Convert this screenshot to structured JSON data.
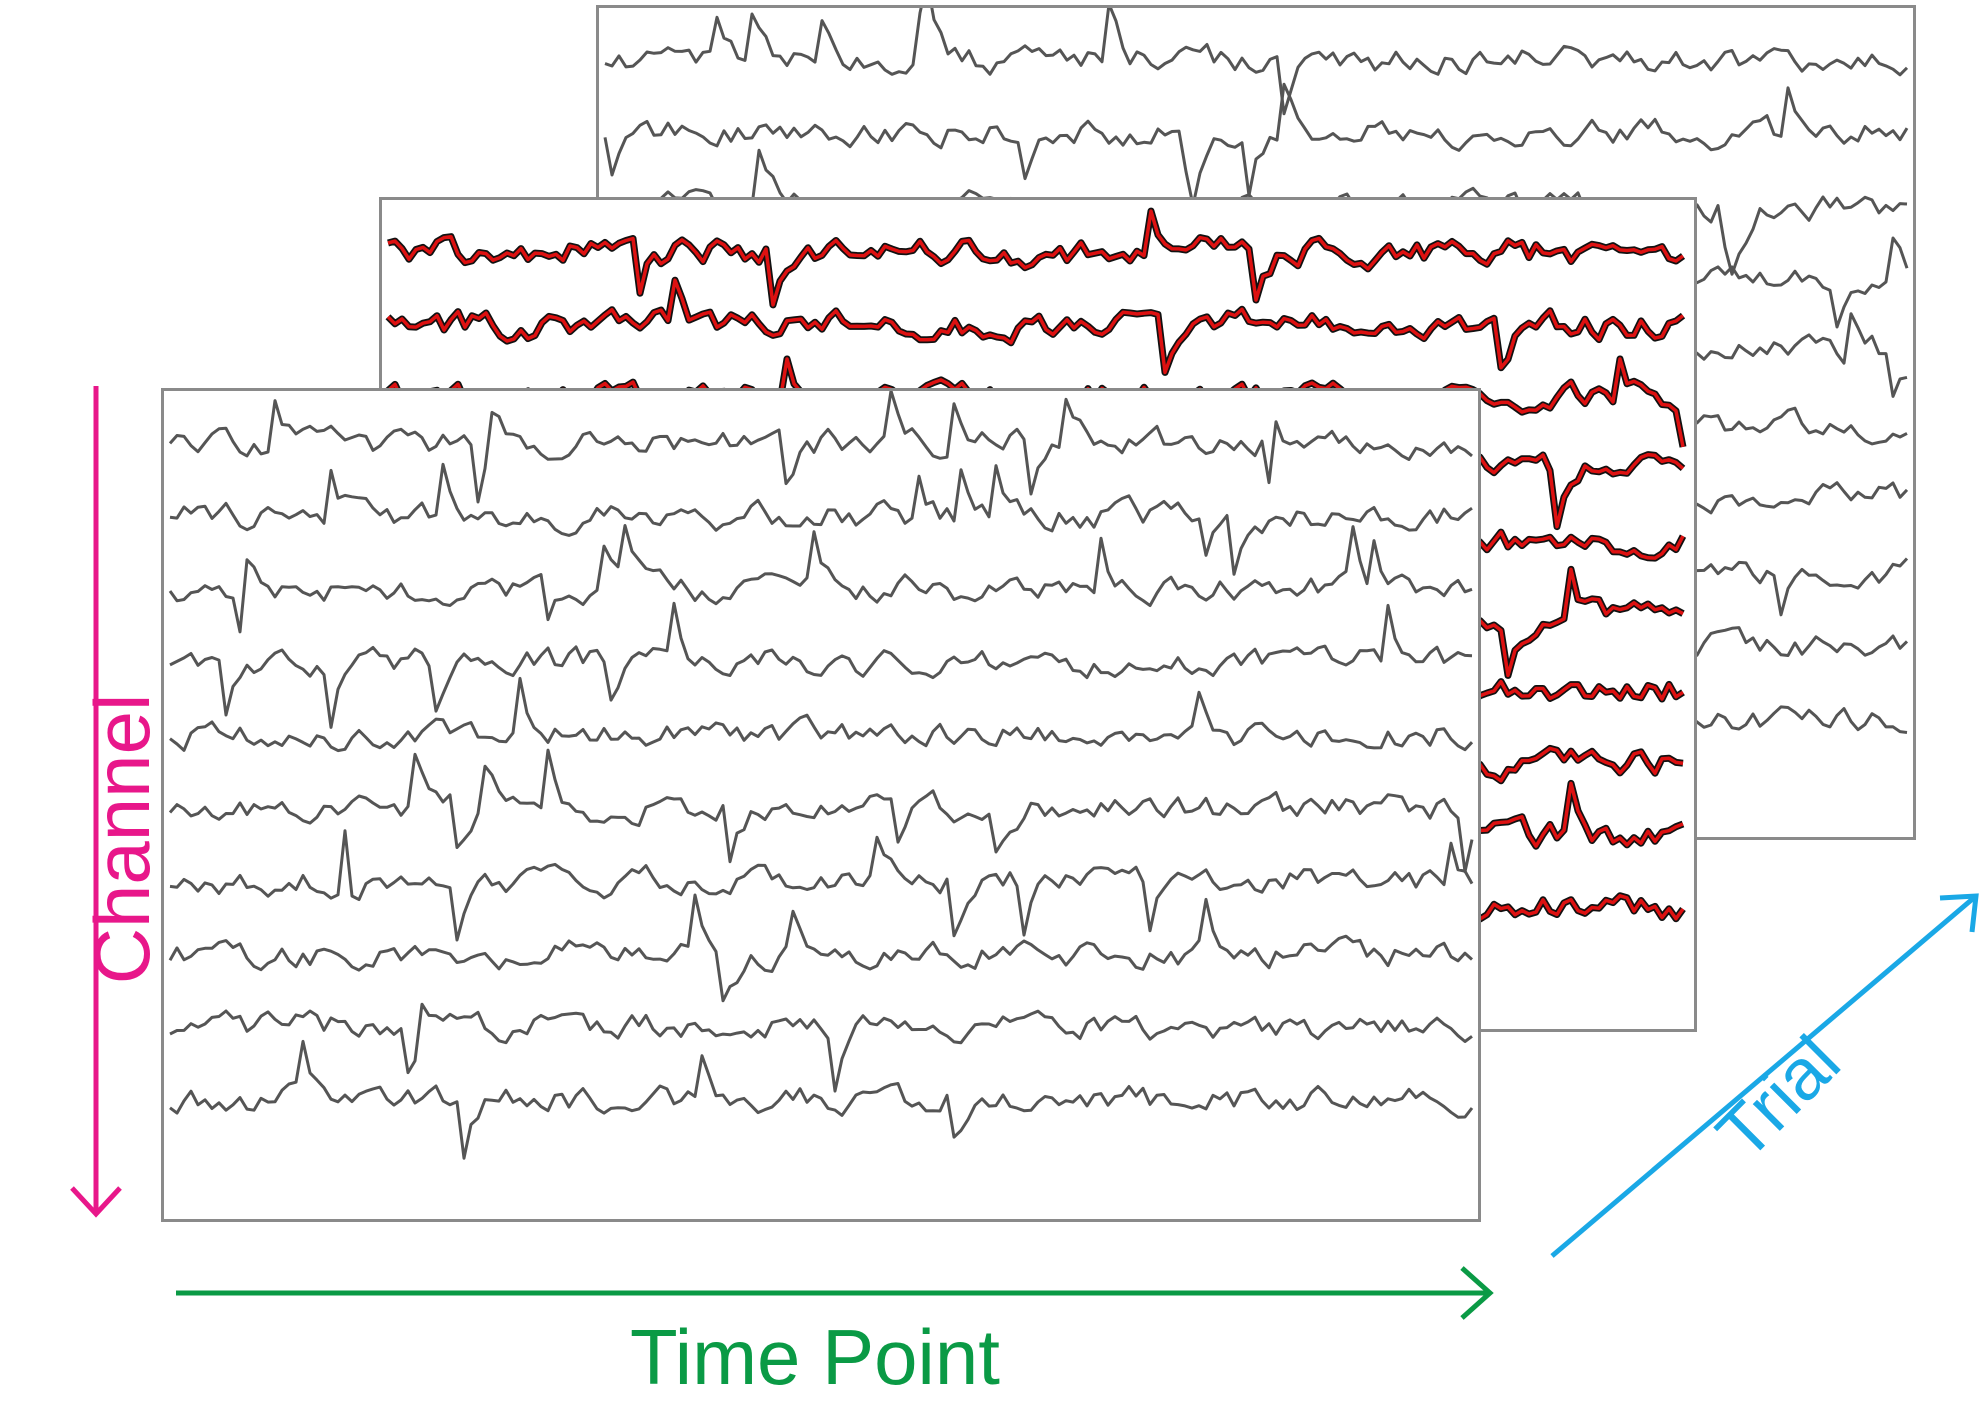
{
  "labels": {
    "time": "Time Point",
    "channel": "Channel",
    "trial": "Trial"
  },
  "colors": {
    "time_axis": "#0a9a45",
    "channel_axis": "#e8178a",
    "trial_axis": "#1aa8e6",
    "trace_default": "#555555",
    "trace_highlight": "#dd1111",
    "trace_highlight_outline": "#111111",
    "frame": "#8a8a8a"
  },
  "diagram": {
    "trials_shown": 3,
    "channels_per_trial": 10,
    "highlighted_trial": 2
  }
}
